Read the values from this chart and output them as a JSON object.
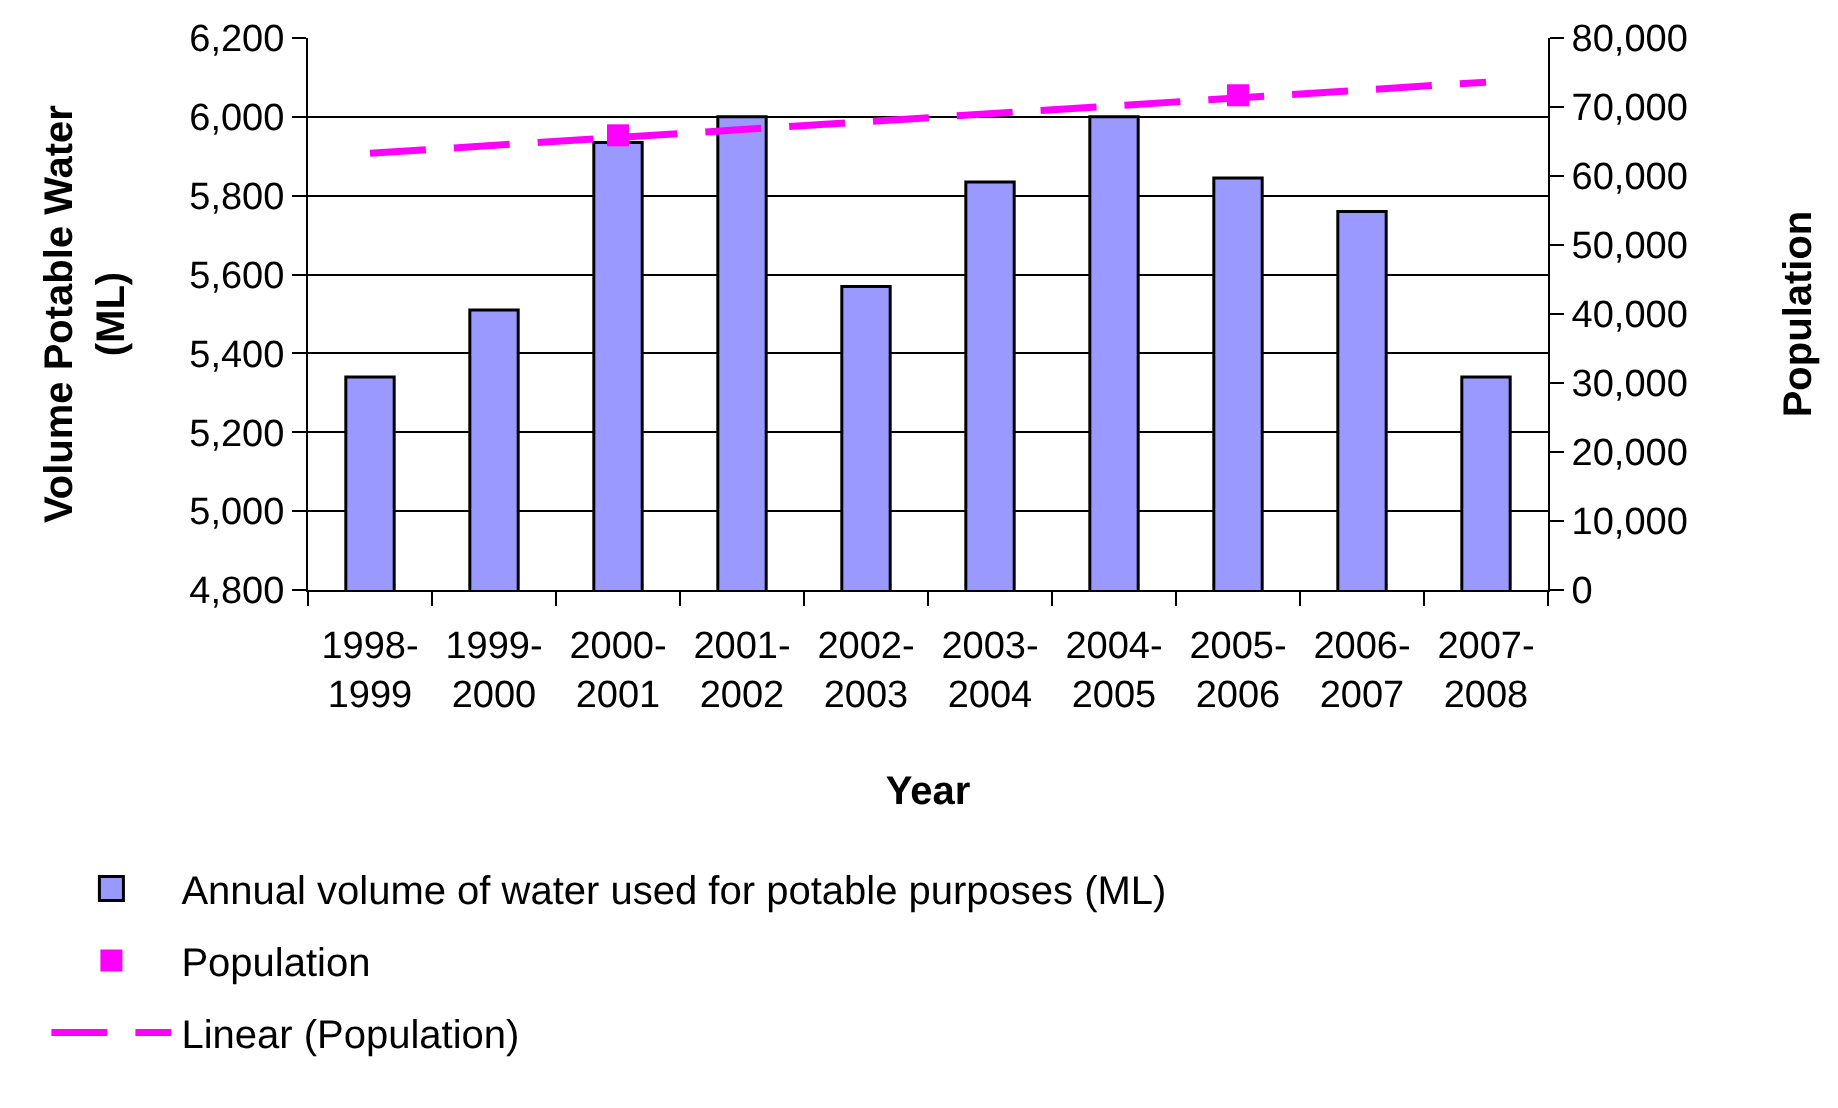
{
  "chart_data": {
    "type": "bar",
    "categories": [
      "1998-\n1999",
      "1999-\n2000",
      "2000-\n2001",
      "2001-\n2002",
      "2002-\n2003",
      "2003-\n2004",
      "2004-\n2005",
      "2005-\n2006",
      "2006-\n2007",
      "2007-\n2008"
    ],
    "xlabel": "Year",
    "ylabel": "Volume Potable Water\n(ML)",
    "y2label": "Population",
    "ylim": [
      4800,
      6200
    ],
    "yticks": [
      {
        "value": 4800,
        "label": "4,800"
      },
      {
        "value": 5000,
        "label": "5,000"
      },
      {
        "value": 5200,
        "label": "5,200"
      },
      {
        "value": 5400,
        "label": "5,400"
      },
      {
        "value": 5600,
        "label": "5,600"
      },
      {
        "value": 5800,
        "label": "5,800"
      },
      {
        "value": 6000,
        "label": "6,000"
      },
      {
        "value": 6200,
        "label": "6,200"
      }
    ],
    "y2lim": [
      0,
      80000
    ],
    "y2ticks": [
      0,
      {
        "value": 10000,
        "label": "10,000"
      },
      {
        "value": 20000,
        "label": "20,000"
      },
      {
        "value": 30000,
        "label": "30,000"
      },
      {
        "value": 40000,
        "label": "40,000"
      },
      {
        "value": 50000,
        "label": "50,000"
      },
      {
        "value": 60000,
        "label": "60,000"
      },
      {
        "value": 70000,
        "label": "70,000"
      },
      {
        "value": 80000,
        "label": "80,000"
      }
    ],
    "grid": "y",
    "legend": "bottom",
    "series": [
      {
        "name": "Annual volume of water used for potable purposes (ML)",
        "color": "#9999ff",
        "values": [
          5340,
          5510,
          5935,
          6000,
          5570,
          5835,
          6000,
          5845,
          5760,
          5340
        ]
      },
      {
        "name": "Population",
        "type": "scatter",
        "color": "#ff00ff",
        "axis": "y2",
        "marker": "square",
        "values": [
          null,
          null,
          65900,
          null,
          null,
          null,
          null,
          71700,
          null,
          null
        ]
      },
      {
        "name": "Linear (Population)",
        "type": "line",
        "color": "#ff00ff",
        "axis": "y2",
        "marker": "none",
        "line_style": "dashed",
        "values": [
          63300,
          null,
          null,
          null,
          null,
          null,
          null,
          null,
          null,
          73600
        ]
      }
    ]
  }
}
